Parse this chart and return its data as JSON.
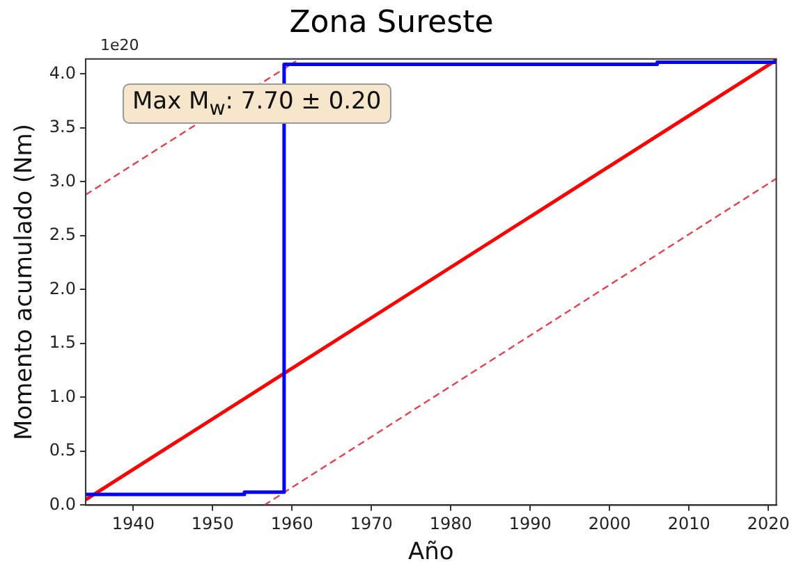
{
  "chart_data": {
    "type": "line",
    "title": "Zona Sureste",
    "xlabel": "Año",
    "ylabel": "Momento acumulado (Nm)",
    "annotations": [
      "Max M$_{w}$: 7.70 ± 0.20",
      "1e20"
    ],
    "series": [
      {
        "type": "step",
        "color": "#0000ff",
        "x": [
          1934,
          1954,
          1959,
          2006,
          2021
        ],
        "values": [
          0.1,
          0.12,
          4.09,
          4.11,
          4.13
        ]
      },
      {
        "type": "line",
        "color": "#ff0000",
        "x": [
          1934,
          2021
        ],
        "values": [
          0.05,
          4.13
        ]
      },
      {
        "type": "line",
        "color": "#e8404f",
        "line_style": "dashed",
        "x": [
          1934,
          1960.5
        ],
        "values": [
          2.88,
          4.12
        ]
      },
      {
        "type": "line",
        "color": "#e8404f",
        "line_style": "dashed",
        "x": [
          1956.5,
          2021
        ],
        "values": [
          0,
          3.03
        ]
      }
    ],
    "xlim": [
      1934,
      2021
    ],
    "xticks": [
      1940,
      1950,
      1960,
      1970,
      1980,
      1990,
      2000,
      2010,
      2020
    ],
    "ylim": [
      0,
      4.14
    ],
    "yticks": [
      {
        "value": 0,
        "label": "0.0"
      },
      0.5,
      {
        "value": 1,
        "label": "1.0"
      },
      1.5,
      {
        "value": 2,
        "label": "2.0"
      },
      2.5,
      {
        "value": 3,
        "label": "3.0"
      },
      3.5,
      {
        "value": 4,
        "label": "4.0"
      }
    ],
    "grid": false,
    "legend": false
  }
}
